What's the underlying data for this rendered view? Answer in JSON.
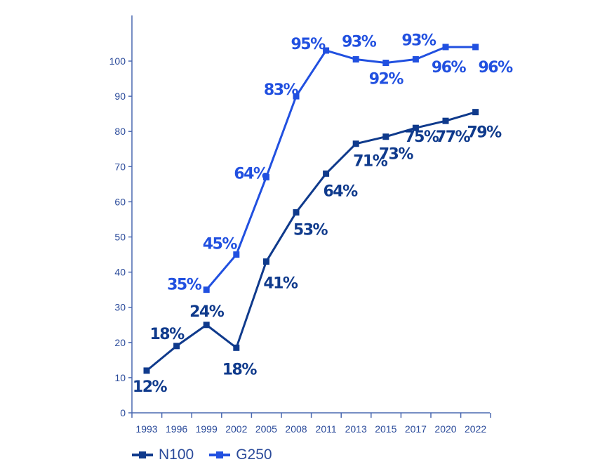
{
  "chart_data": {
    "type": "line",
    "title": "",
    "xlabel": "",
    "ylabel": "",
    "ylim": [
      0,
      110
    ],
    "yticks": [
      0,
      10,
      20,
      30,
      40,
      50,
      60,
      70,
      80,
      90,
      100
    ],
    "grid": false,
    "categories": [
      "1993",
      "1996",
      "1999",
      "2002",
      "2005",
      "2008",
      "2011",
      "2013",
      "2015",
      "2017",
      "2020",
      "2022"
    ],
    "legend_position": "bottom-left",
    "series": [
      {
        "name": "N100",
        "color": "#0f3a8c",
        "values": [
          12,
          18,
          24,
          18,
          41,
          53,
          64,
          71,
          73,
          75,
          77,
          79
        ],
        "labels": [
          "12%",
          "18%",
          "24%",
          "18%",
          "41%",
          "53%",
          "64%",
          "71%",
          "73%",
          "75%",
          "77%",
          "79%"
        ],
        "plotted_position": [
          12,
          19,
          25,
          18.5,
          43,
          57,
          68,
          76.5,
          78.5,
          81,
          83,
          85.5
        ]
      },
      {
        "name": "G250",
        "color": "#2150e0",
        "values": [
          null,
          null,
          35,
          45,
          64,
          83,
          95,
          93,
          92,
          93,
          96,
          96
        ],
        "labels": [
          null,
          null,
          "35%",
          "45%",
          "64%",
          "83%",
          "95%",
          "93%",
          "92%",
          "93%",
          "96%",
          "96%"
        ],
        "plotted_position": [
          null,
          null,
          35,
          45,
          67,
          90,
          103,
          100.5,
          99.5,
          100.5,
          104,
          104
        ]
      }
    ]
  },
  "colors": {
    "axis": "#4a68b0",
    "tick_text": "#2a4a9a"
  }
}
